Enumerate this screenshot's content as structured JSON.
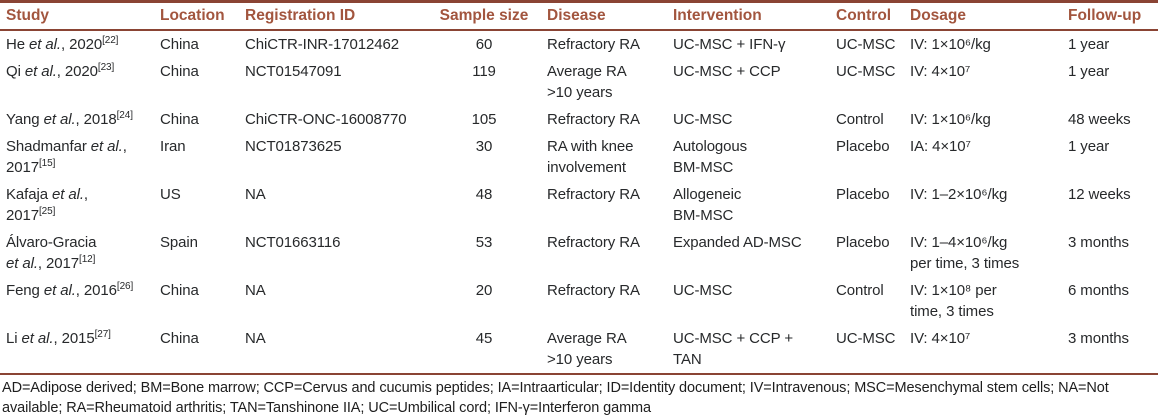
{
  "colors": {
    "border_color": "#8a4434",
    "header_text": "#a2553e",
    "body_text": "#27292b",
    "bg": "#ffffff"
  },
  "table": {
    "columns": [
      {
        "label": "Study"
      },
      {
        "label": "Location"
      },
      {
        "label": "Registration ID"
      },
      {
        "label": "Sample size"
      },
      {
        "label": "Disease"
      },
      {
        "label": "Intervention"
      },
      {
        "label": "Control"
      },
      {
        "label": "Dosage"
      },
      {
        "label": "Follow-up"
      }
    ],
    "rows": [
      {
        "study_segments": [
          {
            "t": "He "
          },
          {
            "t": "et al.",
            "i": true
          },
          {
            "t": ", 2020"
          },
          {
            "t": "[22]",
            "sup": true
          }
        ],
        "location": "China",
        "registration_id": "ChiCTR-INR-17012462",
        "sample_size": "60",
        "disease": "Refractory RA",
        "intervention": "UC-MSC + IFN-γ",
        "control": "UC-MSC",
        "dosage": "IV: 1×10⁶/kg",
        "follow_up": "1 year"
      },
      {
        "study_segments": [
          {
            "t": "Qi "
          },
          {
            "t": "et al.",
            "i": true
          },
          {
            "t": ", 2020"
          },
          {
            "t": "[23]",
            "sup": true
          }
        ],
        "location": "China",
        "registration_id": "NCT01547091",
        "sample_size": "119",
        "disease": "Average RA\n>10 years",
        "intervention": "UC-MSC + CCP",
        "control": "UC-MSC",
        "dosage": "IV: 4×10⁷",
        "follow_up": "1 year"
      },
      {
        "study_segments": [
          {
            "t": "Yang "
          },
          {
            "t": "et al.",
            "i": true
          },
          {
            "t": ", 2018"
          },
          {
            "t": "[24]",
            "sup": true
          }
        ],
        "location": "China",
        "registration_id": "ChiCTR-ONC-16008770",
        "sample_size": "105",
        "disease": "Refractory RA",
        "intervention": "UC-MSC",
        "control": "Control",
        "dosage": "IV: 1×10⁶/kg",
        "follow_up": "48 weeks"
      },
      {
        "study_segments": [
          {
            "t": "Shadmanfar "
          },
          {
            "t": "et al.",
            "i": true
          },
          {
            "t": ","
          },
          {
            "br": true
          },
          {
            "t": "2017"
          },
          {
            "t": "[15]",
            "sup": true
          }
        ],
        "location": "Iran",
        "registration_id": "NCT01873625",
        "sample_size": "30",
        "disease": "RA with knee\ninvolvement",
        "intervention": "Autologous\nBM-MSC",
        "control": "Placebo",
        "dosage": "IA: 4×10⁷",
        "follow_up": "1 year"
      },
      {
        "study_segments": [
          {
            "t": "Kafaja "
          },
          {
            "t": "et al.",
            "i": true
          },
          {
            "t": ","
          },
          {
            "br": true
          },
          {
            "t": "2017"
          },
          {
            "t": "[25]",
            "sup": true
          }
        ],
        "location": "US",
        "registration_id": "NA",
        "sample_size": "48",
        "disease": "Refractory RA",
        "intervention": "Allogeneic\nBM-MSC",
        "control": "Placebo",
        "dosage": "IV: 1–2×10⁶/kg",
        "follow_up": "12 weeks"
      },
      {
        "study_segments": [
          {
            "t": "Álvaro-Gracia"
          },
          {
            "br": true
          },
          {
            "t": "et al.",
            "i": true
          },
          {
            "t": ", 2017"
          },
          {
            "t": "[12]",
            "sup": true
          }
        ],
        "location": "Spain",
        "registration_id": "NCT01663116",
        "sample_size": "53",
        "disease": "Refractory RA",
        "intervention": "Expanded AD-MSC",
        "control": "Placebo",
        "dosage": "IV: 1–4×10⁶/kg\nper time, 3 times",
        "follow_up": "3 months"
      },
      {
        "study_segments": [
          {
            "t": "Feng "
          },
          {
            "t": "et al.",
            "i": true
          },
          {
            "t": ", 2016"
          },
          {
            "t": "[26]",
            "sup": true
          }
        ],
        "location": "China",
        "registration_id": "NA",
        "sample_size": "20",
        "disease": "Refractory RA",
        "intervention": "UC-MSC",
        "control": "Control",
        "dosage": "IV: 1×10⁸ per\ntime, 3 times",
        "follow_up": "6 months"
      },
      {
        "study_segments": [
          {
            "t": "Li "
          },
          {
            "t": "et al.",
            "i": true
          },
          {
            "t": ", 2015"
          },
          {
            "t": "[27]",
            "sup": true
          }
        ],
        "location": "China",
        "registration_id": "NA",
        "sample_size": "45",
        "disease": "Average RA\n>10 years",
        "intervention": "UC-MSC + CCP +\nTAN",
        "control": "UC-MSC",
        "dosage": "IV: 4×10⁷",
        "follow_up": "3 months"
      }
    ]
  },
  "footnote": {
    "text": "AD=Adipose derived; BM=Bone marrow; CCP=Cervus and cucumis peptides; IA=Intraarticular; ID=Identity document; IV=Intravenous; MSC=Mesenchymal stem cells; NA=Not\navailable; RA=Rheumatoid arthritis; TAN=Tanshinone IIA; UC=Umbilical cord; IFN-γ=Interferon gamma"
  }
}
